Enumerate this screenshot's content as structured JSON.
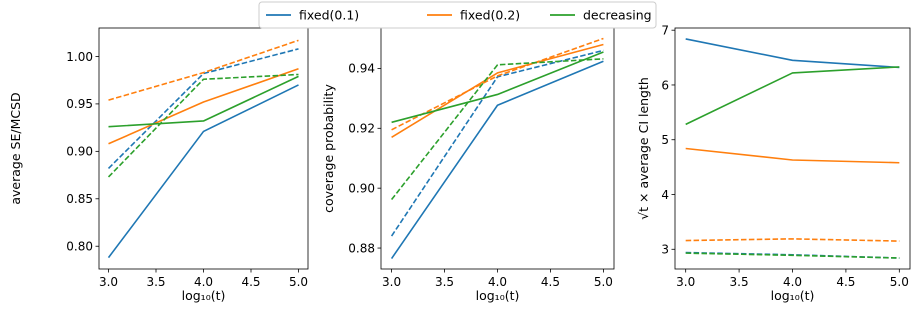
{
  "legend": {
    "placement": "top-center",
    "entries": [
      {
        "label": "fixed(0.1)",
        "color": "#1f77b4"
      },
      {
        "label": "fixed(0.2)",
        "color": "#ff7f0e"
      },
      {
        "label": "decreasing",
        "color": "#2ca02c"
      }
    ]
  },
  "chart_data": [
    {
      "type": "line",
      "xlabel": "log₁₀(t)",
      "ylabel": "average SE/MCSD",
      "x": [
        3.0,
        4.0,
        5.0
      ],
      "xticks": [
        "3.0",
        "3.5",
        "4.0",
        "4.5",
        "5.0"
      ],
      "xlim": [
        2.9,
        5.1
      ],
      "ylim": [
        0.776,
        1.03
      ],
      "yticks": [
        "0.80",
        "0.85",
        "0.90",
        "0.95",
        "1.00"
      ],
      "grid": false,
      "series": [
        {
          "name": "fixed(0.1)",
          "color": "#1f77b4",
          "style": "solid",
          "values": [
            0.788,
            0.921,
            0.97
          ]
        },
        {
          "name": "fixed(0.1)",
          "color": "#1f77b4",
          "style": "dashed",
          "values": [
            0.882,
            0.982,
            1.008
          ]
        },
        {
          "name": "fixed(0.2)",
          "color": "#ff7f0e",
          "style": "solid",
          "values": [
            0.908,
            0.952,
            0.987
          ]
        },
        {
          "name": "fixed(0.2)",
          "color": "#ff7f0e",
          "style": "dashed",
          "values": [
            0.954,
            0.983,
            1.017
          ]
        },
        {
          "name": "decreasing",
          "color": "#2ca02c",
          "style": "solid",
          "values": [
            0.926,
            0.932,
            0.979
          ]
        },
        {
          "name": "decreasing",
          "color": "#2ca02c",
          "style": "dashed",
          "values": [
            0.873,
            0.976,
            0.981
          ]
        }
      ]
    },
    {
      "type": "line",
      "xlabel": "log₁₀(t)",
      "ylabel": "coverage probability",
      "x": [
        3.0,
        4.0,
        5.0
      ],
      "xticks": [
        "3.0",
        "3.5",
        "4.0",
        "4.5",
        "5.0"
      ],
      "xlim": [
        2.9,
        5.1
      ],
      "ylim": [
        0.873,
        0.9535
      ],
      "yticks": [
        "0.88",
        "0.90",
        "0.92",
        "0.94"
      ],
      "grid": false,
      "series": [
        {
          "name": "fixed(0.1)",
          "color": "#1f77b4",
          "style": "solid",
          "values": [
            0.8765,
            0.9277,
            0.9424
          ]
        },
        {
          "name": "fixed(0.1)",
          "color": "#1f77b4",
          "style": "dashed",
          "values": [
            0.884,
            0.9372,
            0.946
          ]
        },
        {
          "name": "fixed(0.2)",
          "color": "#ff7f0e",
          "style": "solid",
          "values": [
            0.917,
            0.9385,
            0.948
          ]
        },
        {
          "name": "fixed(0.2)",
          "color": "#ff7f0e",
          "style": "dashed",
          "values": [
            0.9195,
            0.9375,
            0.95
          ]
        },
        {
          "name": "decreasing",
          "color": "#2ca02c",
          "style": "solid",
          "values": [
            0.922,
            0.9313,
            0.9455
          ]
        },
        {
          "name": "decreasing",
          "color": "#2ca02c",
          "style": "dashed",
          "values": [
            0.8962,
            0.9412,
            0.9432
          ]
        }
      ]
    },
    {
      "type": "line",
      "xlabel": "log₁₀(t)",
      "ylabel": "√t × average CI length",
      "x": [
        3.0,
        4.0,
        5.0
      ],
      "xticks": [
        "3.0",
        "3.5",
        "4.0",
        "4.5",
        "5.0"
      ],
      "xlim": [
        2.9,
        5.1
      ],
      "ylim": [
        2.64,
        7.04
      ],
      "yticks": [
        "3",
        "4",
        "5",
        "6",
        "7"
      ],
      "grid": false,
      "series": [
        {
          "name": "fixed(0.1)",
          "color": "#1f77b4",
          "style": "solid",
          "values": [
            6.84,
            6.45,
            6.32
          ]
        },
        {
          "name": "fixed(0.1)",
          "color": "#1f77b4",
          "style": "dashed",
          "values": [
            2.94,
            2.9,
            2.84
          ]
        },
        {
          "name": "fixed(0.2)",
          "color": "#ff7f0e",
          "style": "solid",
          "values": [
            4.84,
            4.63,
            4.58
          ]
        },
        {
          "name": "fixed(0.2)",
          "color": "#ff7f0e",
          "style": "dashed",
          "values": [
            3.16,
            3.19,
            3.15
          ]
        },
        {
          "name": "decreasing",
          "color": "#2ca02c",
          "style": "solid",
          "values": [
            5.28,
            6.22,
            6.33
          ]
        },
        {
          "name": "decreasing",
          "color": "#2ca02c",
          "style": "dashed",
          "values": [
            2.93,
            2.89,
            2.84
          ]
        }
      ]
    }
  ]
}
